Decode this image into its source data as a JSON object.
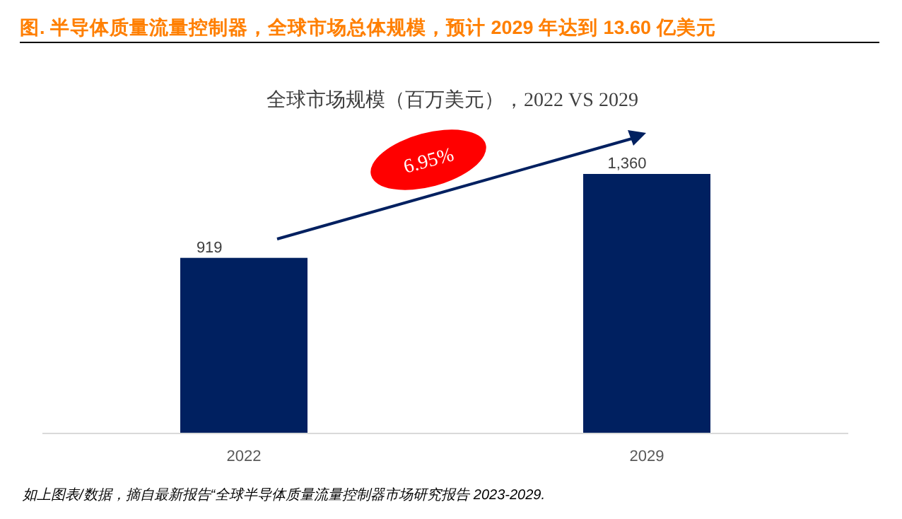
{
  "chart_data": {
    "type": "bar",
    "title": "图.   半导体质量流量控制器，全球市场总体规模，预计 2029 年达到 13.60 亿美元",
    "subtitle": "全球市场规模（百万美元），2022 VS 2029",
    "categories": [
      "2022",
      "2029"
    ],
    "values": [
      919,
      1360
    ],
    "value_labels": [
      "919",
      "1,360"
    ],
    "color": "#002060",
    "annotations": [
      "6.95%",
      "如上图表/数据，摘自最新报告“全球半导体质量流量控制器市场研究报告 2023-2029."
    ]
  }
}
